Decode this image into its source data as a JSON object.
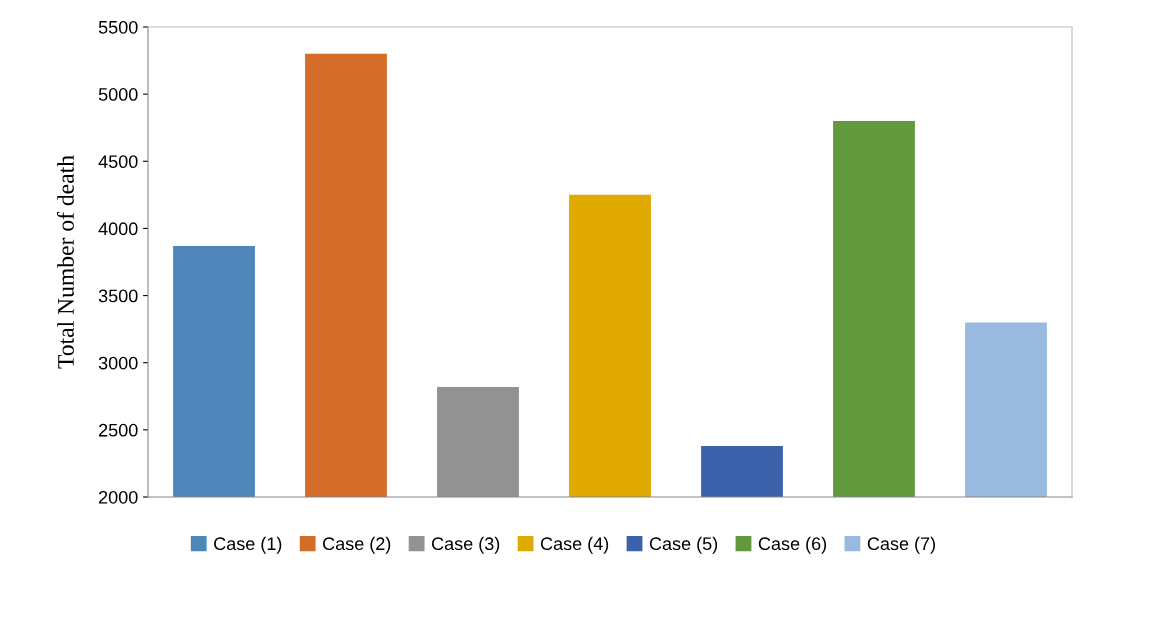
{
  "chart_data": {
    "type": "bar",
    "ylabel": "Total Number of death",
    "categories": [
      null,
      null,
      null,
      null,
      null,
      null,
      null
    ],
    "series": [
      {
        "name": "Case (1)",
        "color": "#4f87bb",
        "values": [
          3870,
          null,
          null,
          null,
          null,
          null,
          null
        ]
      },
      {
        "name": "Case (2)",
        "color": "#d46d2a",
        "values": [
          null,
          5300,
          null,
          null,
          null,
          null,
          null
        ]
      },
      {
        "name": "Case (3)",
        "color": "#929292",
        "values": [
          null,
          null,
          2820,
          null,
          null,
          null,
          null
        ]
      },
      {
        "name": "Case (4)",
        "color": "#e0a900",
        "values": [
          null,
          null,
          null,
          4250,
          null,
          null,
          null
        ]
      },
      {
        "name": "Case (5)",
        "color": "#3b62ab",
        "values": [
          null,
          null,
          null,
          null,
          2380,
          null,
          null
        ]
      },
      {
        "name": "Case (6)",
        "color": "#62993d",
        "values": [
          null,
          null,
          null,
          null,
          null,
          4800,
          null
        ]
      },
      {
        "name": "Case (7)",
        "color": "#9ab9df",
        "values": [
          null,
          null,
          null,
          null,
          null,
          null,
          3300
        ]
      }
    ],
    "ylim": [
      2000,
      5500
    ],
    "yticks": [
      2000,
      2500,
      3000,
      3500,
      4000,
      4500,
      5000,
      5500
    ],
    "grid": false,
    "legend": "bottom"
  }
}
